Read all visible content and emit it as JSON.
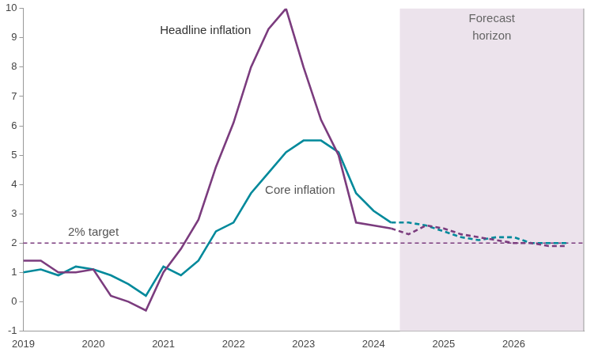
{
  "chart_data": {
    "type": "line",
    "x": [
      2019,
      2019.25,
      2019.5,
      2019.75,
      2020,
      2020.25,
      2020.5,
      2020.75,
      2021,
      2021.25,
      2021.5,
      2021.75,
      2022,
      2022.25,
      2022.5,
      2022.75,
      2023,
      2023.25,
      2023.5,
      2023.75,
      2024,
      2024.25,
      2024.5,
      2024.75,
      2025,
      2025.25,
      2025.5,
      2025.75,
      2026,
      2026.25,
      2026.5,
      2026.75
    ],
    "series": [
      {
        "name": "Headline inflation",
        "color": "#7b3c7e",
        "values": [
          1.4,
          1.4,
          1.0,
          1.0,
          1.1,
          0.2,
          0.0,
          -0.3,
          1.0,
          1.8,
          2.8,
          4.6,
          6.1,
          8.0,
          9.3,
          10.0,
          8.0,
          6.2,
          5.0,
          2.7,
          2.6,
          2.5,
          2.3,
          2.6,
          2.5,
          2.3,
          2.2,
          2.1,
          2.0,
          2.0,
          1.9,
          1.9
        ]
      },
      {
        "name": "Core inflation",
        "color": "#00899b",
        "values": [
          1.0,
          1.1,
          0.9,
          1.2,
          1.1,
          0.9,
          0.6,
          0.2,
          1.2,
          0.9,
          1.4,
          2.4,
          2.7,
          3.7,
          4.4,
          5.1,
          5.5,
          5.5,
          5.1,
          3.7,
          3.1,
          2.7,
          2.7,
          2.6,
          2.4,
          2.2,
          2.1,
          2.2,
          2.2,
          2.0,
          2.0,
          2.0
        ]
      }
    ],
    "target": {
      "label": "2% target",
      "value": 2,
      "color": "#7b3c7e"
    },
    "forecast_horizon": {
      "label": "Forecast horizon",
      "start": 2024.375,
      "end": 2027,
      "color": "#ece3ec"
    },
    "xlim": [
      2019,
      2027
    ],
    "xticks": [
      2019,
      2020,
      2021,
      2022,
      2023,
      2024,
      2025,
      2026
    ],
    "ylim": [
      -1,
      10
    ],
    "yticks": [
      -1,
      0,
      1,
      2,
      3,
      4,
      5,
      6,
      7,
      8,
      9,
      10
    ],
    "grid": false
  }
}
